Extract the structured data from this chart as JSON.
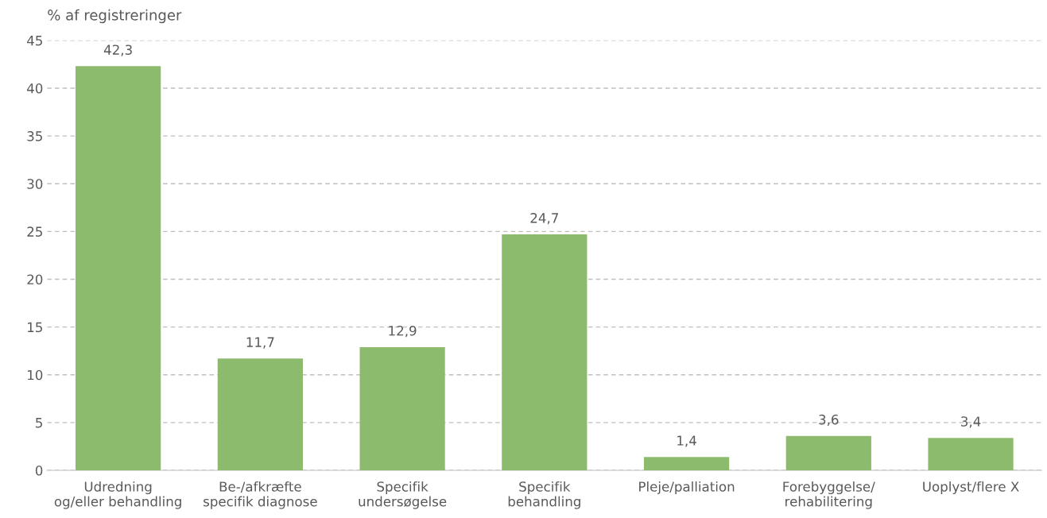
{
  "chart_data": {
    "type": "bar",
    "ylabel": "% af registreringer",
    "categories": [
      "Udredning\nog/eller behandling",
      "Be-/afkræfte\nspecifik diagnose",
      "Specifik\nundersøgelse",
      "Specifik\nbehandling",
      "Pleje/palliation",
      "Forebyggelse/\nrehabilitering",
      "Uoplyst/flere X"
    ],
    "values": [
      42.3,
      11.7,
      12.9,
      24.7,
      1.4,
      3.6,
      3.4
    ],
    "value_labels": [
      "42,3",
      "11,7",
      "12,9",
      "24,7",
      "1,4",
      "3,6",
      "3,4"
    ],
    "color": "#8dbb6d",
    "ylim": [
      0,
      45
    ],
    "yticks": [
      0,
      5,
      10,
      15,
      20,
      25,
      30,
      35,
      40,
      45
    ],
    "grid": "y",
    "legend": false
  }
}
